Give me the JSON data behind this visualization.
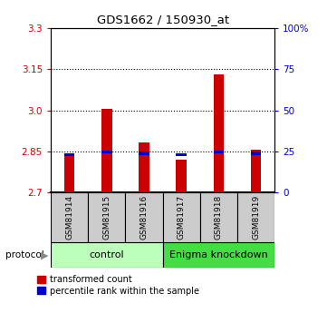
{
  "title": "GDS1662 / 150930_at",
  "samples": [
    "GSM81914",
    "GSM81915",
    "GSM81916",
    "GSM81917",
    "GSM81918",
    "GSM81919"
  ],
  "red_values": [
    2.833,
    3.005,
    2.883,
    2.82,
    3.13,
    2.855
  ],
  "blue_values": [
    2.838,
    2.848,
    2.843,
    2.837,
    2.848,
    2.843
  ],
  "ylim": [
    2.7,
    3.3
  ],
  "yticks_left": [
    2.7,
    2.85,
    3.0,
    3.15,
    3.3
  ],
  "yticks_right": [
    0,
    25,
    50,
    75,
    100
  ],
  "red_color": "#cc0000",
  "blue_color": "#0000cc",
  "legend_red_label": "transformed count",
  "legend_blue_label": "percentile rank within the sample",
  "ctrl_color": "#bbffbb",
  "enig_color": "#44dd44",
  "gray_color": "#cccccc"
}
